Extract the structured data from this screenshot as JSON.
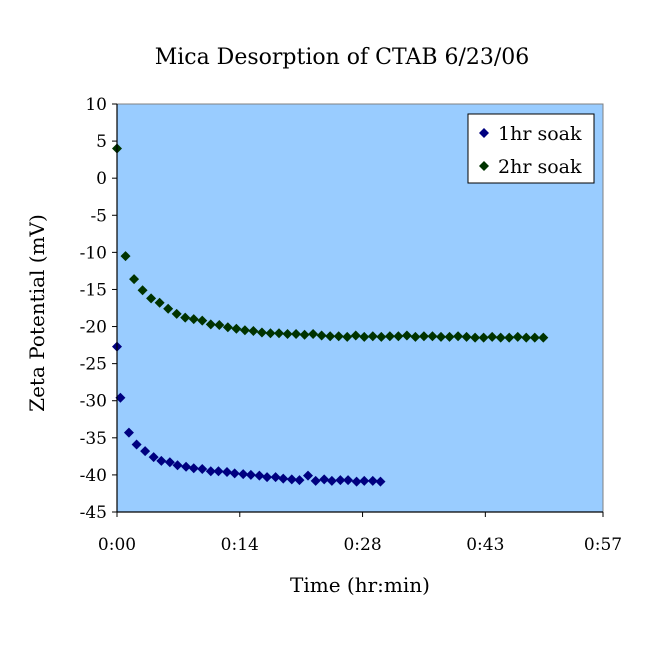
{
  "chart_data": {
    "type": "scatter",
    "title": "Mica Desorption of CTAB 6/23/06",
    "xlabel": "Time (hr:min)",
    "ylabel": "Zeta Potential (mV)",
    "xlim": [
      0,
      57
    ],
    "ylim": [
      -45,
      10
    ],
    "x_ticks": [
      {
        "value": 0,
        "label": "0:00"
      },
      {
        "value": 14.4,
        "label": "0:14"
      },
      {
        "value": 28.8,
        "label": "0:28"
      },
      {
        "value": 43.2,
        "label": "0:43"
      },
      {
        "value": 57.6,
        "label": "0:57"
      }
    ],
    "y_ticks": [
      10,
      5,
      0,
      -5,
      -10,
      -15,
      -20,
      -25,
      -30,
      -35,
      -40,
      -45
    ],
    "grid": false,
    "legend_position": "top-right",
    "plot_background": "#99ccff",
    "series": [
      {
        "name": "1hr soak",
        "color": "#000080",
        "marker": "diamond",
        "points": [
          [
            0.0,
            -22.7
          ],
          [
            0.4,
            -29.6
          ],
          [
            1.4,
            -34.3
          ],
          [
            2.3,
            -35.9
          ],
          [
            3.3,
            -36.8
          ],
          [
            4.3,
            -37.6
          ],
          [
            5.2,
            -38.1
          ],
          [
            6.2,
            -38.3
          ],
          [
            7.1,
            -38.7
          ],
          [
            8.1,
            -38.9
          ],
          [
            9.0,
            -39.1
          ],
          [
            10.0,
            -39.2
          ],
          [
            11.0,
            -39.5
          ],
          [
            11.9,
            -39.5
          ],
          [
            12.9,
            -39.6
          ],
          [
            13.8,
            -39.8
          ],
          [
            14.8,
            -39.9
          ],
          [
            15.7,
            -40.0
          ],
          [
            16.7,
            -40.1
          ],
          [
            17.6,
            -40.3
          ],
          [
            18.6,
            -40.3
          ],
          [
            19.5,
            -40.5
          ],
          [
            20.5,
            -40.6
          ],
          [
            21.4,
            -40.7
          ],
          [
            22.4,
            -40.1
          ],
          [
            23.3,
            -40.8
          ],
          [
            24.3,
            -40.6
          ],
          [
            25.2,
            -40.8
          ],
          [
            26.2,
            -40.7
          ],
          [
            27.1,
            -40.7
          ],
          [
            28.1,
            -40.9
          ],
          [
            29.0,
            -40.8
          ],
          [
            30.0,
            -40.8
          ],
          [
            30.9,
            -40.9
          ]
        ]
      },
      {
        "name": "2hr soak",
        "color": "#003300",
        "marker": "diamond",
        "points": [
          [
            0.0,
            4.0
          ],
          [
            1.0,
            -10.5
          ],
          [
            2.0,
            -13.6
          ],
          [
            3.0,
            -15.1
          ],
          [
            4.0,
            -16.2
          ],
          [
            5.0,
            -16.8
          ],
          [
            6.0,
            -17.6
          ],
          [
            7.0,
            -18.3
          ],
          [
            8.0,
            -18.8
          ],
          [
            9.0,
            -19.0
          ],
          [
            10.0,
            -19.2
          ],
          [
            11.0,
            -19.7
          ],
          [
            12.0,
            -19.8
          ],
          [
            13.0,
            -20.1
          ],
          [
            14.0,
            -20.3
          ],
          [
            15.0,
            -20.5
          ],
          [
            16.0,
            -20.6
          ],
          [
            17.0,
            -20.8
          ],
          [
            18.0,
            -20.9
          ],
          [
            19.0,
            -20.9
          ],
          [
            20.0,
            -21.0
          ],
          [
            21.0,
            -21.0
          ],
          [
            22.0,
            -21.1
          ],
          [
            23.0,
            -21.0
          ],
          [
            24.0,
            -21.2
          ],
          [
            25.0,
            -21.3
          ],
          [
            26.0,
            -21.3
          ],
          [
            27.0,
            -21.4
          ],
          [
            28.0,
            -21.2
          ],
          [
            29.0,
            -21.4
          ],
          [
            30.0,
            -21.3
          ],
          [
            31.0,
            -21.4
          ],
          [
            32.0,
            -21.3
          ],
          [
            33.0,
            -21.3
          ],
          [
            34.0,
            -21.2
          ],
          [
            35.0,
            -21.4
          ],
          [
            36.0,
            -21.3
          ],
          [
            37.0,
            -21.3
          ],
          [
            38.0,
            -21.4
          ],
          [
            39.0,
            -21.4
          ],
          [
            40.0,
            -21.3
          ],
          [
            41.0,
            -21.4
          ],
          [
            42.0,
            -21.5
          ],
          [
            43.0,
            -21.5
          ],
          [
            44.0,
            -21.4
          ],
          [
            45.0,
            -21.5
          ],
          [
            46.0,
            -21.5
          ],
          [
            47.0,
            -21.4
          ],
          [
            48.0,
            -21.5
          ],
          [
            49.0,
            -21.5
          ],
          [
            50.0,
            -21.5
          ]
        ]
      }
    ]
  }
}
